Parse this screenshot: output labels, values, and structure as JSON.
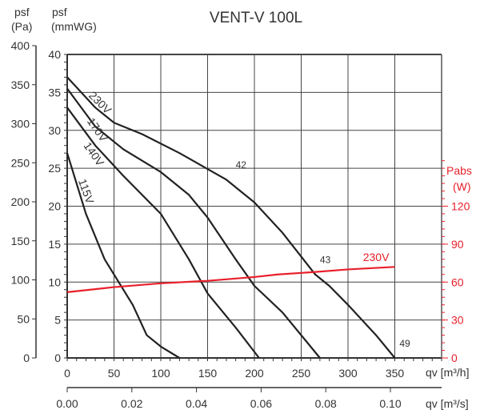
{
  "chart_data": {
    "type": "line",
    "title": "VENT-V 100L",
    "x_label": "qv [m³/h]",
    "x2_label": "qv [m³/s]",
    "y_left_pa_label": [
      "psf",
      "(Pa)"
    ],
    "y_left_label": [
      "psf",
      "(mmWG)"
    ],
    "y_right_label": [
      "Pabs",
      "(W)"
    ],
    "xlim": [
      0,
      400
    ],
    "x_ticks": [
      0,
      50,
      100,
      150,
      200,
      250,
      300,
      350
    ],
    "x2_ticks": [
      "0.00",
      "0.02",
      "0.04",
      "0.06",
      "0.08",
      "0.10"
    ],
    "ylim": [
      0,
      40
    ],
    "y_ticks": [
      0,
      5,
      10,
      15,
      20,
      25,
      30,
      35,
      40
    ],
    "y_pa_ticks": [
      0,
      50,
      100,
      150,
      200,
      250,
      300,
      350,
      400
    ],
    "y_right_ticks": [
      0,
      30,
      60,
      90,
      120
    ],
    "grid": true,
    "colors": {
      "pressure": "#222222",
      "power": "#e8202a"
    },
    "series": [
      {
        "name": "230V",
        "axis": "mmWG",
        "points": [
          [
            0,
            37
          ],
          [
            30,
            33
          ],
          [
            50,
            31
          ],
          [
            80,
            29.5
          ],
          [
            120,
            27
          ],
          [
            170,
            23.5
          ],
          [
            200,
            20.5
          ],
          [
            230,
            16.5
          ],
          [
            265,
            11
          ],
          [
            280,
            9.5
          ],
          [
            300,
            7
          ],
          [
            330,
            3
          ],
          [
            350,
            0
          ]
        ]
      },
      {
        "name": "170V",
        "axis": "mmWG",
        "points": [
          [
            0,
            35.5
          ],
          [
            30,
            30.5
          ],
          [
            60,
            27.5
          ],
          [
            100,
            24.5
          ],
          [
            130,
            21.5
          ],
          [
            150,
            18.5
          ],
          [
            180,
            13
          ],
          [
            200,
            9.5
          ],
          [
            230,
            6
          ],
          [
            270,
            0
          ]
        ]
      },
      {
        "name": "140V",
        "axis": "mmWG",
        "points": [
          [
            0,
            33
          ],
          [
            30,
            28
          ],
          [
            60,
            24
          ],
          [
            100,
            19
          ],
          [
            130,
            13
          ],
          [
            150,
            8.5
          ],
          [
            180,
            4
          ],
          [
            205,
            0
          ]
        ]
      },
      {
        "name": "115V",
        "axis": "mmWG",
        "points": [
          [
            0,
            27
          ],
          [
            20,
            19
          ],
          [
            40,
            13
          ],
          [
            70,
            7
          ],
          [
            85,
            3
          ],
          [
            100,
            1.5
          ],
          [
            120,
            0
          ]
        ]
      },
      {
        "name": "230V",
        "axis": "W",
        "points": [
          [
            0,
            52
          ],
          [
            50,
            56
          ],
          [
            100,
            59
          ],
          [
            150,
            61
          ],
          [
            200,
            64
          ],
          [
            225,
            66
          ],
          [
            265,
            68
          ],
          [
            300,
            70
          ],
          [
            350,
            72
          ]
        ]
      }
    ],
    "annotations": [
      {
        "text": "42",
        "x": 180,
        "y": 25
      },
      {
        "text": "43",
        "x": 270,
        "y": 12.5
      },
      {
        "text": "49",
        "x": 355,
        "y": 1.5
      }
    ]
  }
}
